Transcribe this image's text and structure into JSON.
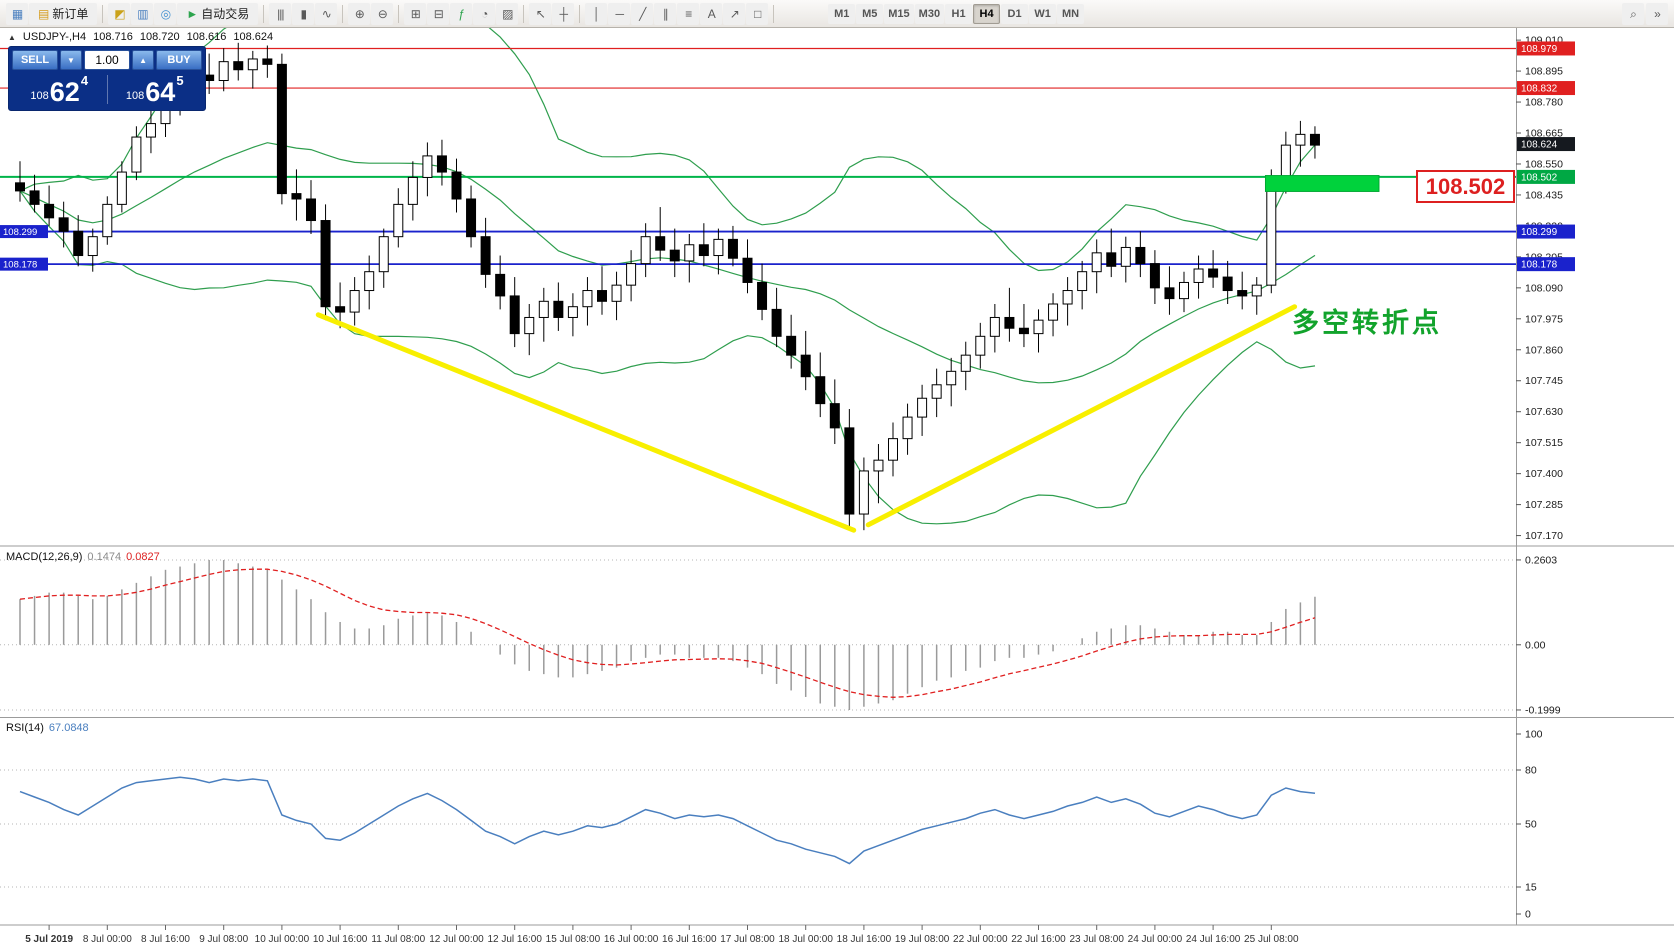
{
  "toolbar": {
    "items": [
      {
        "name": "chart-window-icon",
        "glyph": "▦",
        "color": "#4a7fbf"
      },
      {
        "name": "new-order-button",
        "glyph": "▤",
        "color": "#d49a1a",
        "label": "新订单"
      },
      {
        "type": "sep"
      },
      {
        "name": "market-watch-icon",
        "glyph": "◩",
        "color": "#caa21a"
      },
      {
        "name": "data-window-icon",
        "glyph": "▥",
        "color": "#4a7fbf"
      },
      {
        "name": "navigator-icon",
        "glyph": "◎",
        "color": "#3f8fd0"
      },
      {
        "name": "auto-trading-button",
        "glyph": "►",
        "color": "#2da44e",
        "label": "自动交易"
      },
      {
        "type": "sep"
      },
      {
        "name": "bar-chart-icon",
        "glyph": "|||"
      },
      {
        "name": "candlestick-chart-icon",
        "glyph": "▮"
      },
      {
        "name": "line-chart-icon",
        "glyph": "∿"
      },
      {
        "type": "sep"
      },
      {
        "name": "zoom-in-icon",
        "glyph": "⊕"
      },
      {
        "name": "zoom-out-icon",
        "glyph": "⊖"
      },
      {
        "type": "sep"
      },
      {
        "name": "tile-windows-icon",
        "glyph": "⊞"
      },
      {
        "name": "cascade-windows-icon",
        "glyph": "⊟"
      },
      {
        "name": "indicators-icon",
        "glyph": "ƒ",
        "color": "#2da44e"
      },
      {
        "name": "periods-icon",
        "glyph": "◔"
      },
      {
        "name": "templates-icon",
        "glyph": "▨"
      },
      {
        "type": "sep"
      },
      {
        "name": "cursor-icon",
        "glyph": "↖"
      },
      {
        "name": "crosshair-icon",
        "glyph": "┼"
      },
      {
        "type": "sep"
      },
      {
        "name": "vertical-line-icon",
        "glyph": "│"
      },
      {
        "name": "horizontal-line-icon",
        "glyph": "─"
      },
      {
        "name": "trendline-icon",
        "glyph": "╱"
      },
      {
        "name": "channel-icon",
        "glyph": "∥"
      },
      {
        "name": "fibonacci-icon",
        "glyph": "≡"
      },
      {
        "name": "text-icon",
        "glyph": "A"
      },
      {
        "name": "arrows-icon",
        "glyph": "↗"
      },
      {
        "name": "shapes-icon",
        "glyph": "□"
      },
      {
        "type": "sep"
      },
      {
        "type": "space"
      }
    ],
    "timeframes": [
      "M1",
      "M5",
      "M15",
      "M30",
      "H1",
      "H4",
      "D1",
      "W1",
      "MN"
    ],
    "active_timeframe": "H4",
    "right_items": [
      {
        "name": "search-icon",
        "glyph": "⌕"
      },
      {
        "name": "more-tools-icon",
        "glyph": "»"
      }
    ]
  },
  "trade_panel": {
    "sell_label": "SELL",
    "buy_label": "BUY",
    "volume": "1.00",
    "sell_price_prefix": "108",
    "sell_price_main": "62",
    "sell_price_sup": "4",
    "buy_price_prefix": "108",
    "buy_price_main": "64",
    "buy_price_sup": "5"
  },
  "symbol_info": {
    "collapse_glyph": "▲",
    "symbol_period": "USDJPY-,H4",
    "open": "108.716",
    "high": "108.720",
    "low": "108.616",
    "close": "108.624"
  },
  "indicators": {
    "macd_label": "MACD(12,26,9)",
    "macd_value": "0.1474",
    "macd_signal": "0.0827",
    "rsi_label": "RSI(14)",
    "rsi_value": "67.0848"
  },
  "annotations": {
    "turning_point_text": "多空转折点",
    "price_callout": "108.502"
  },
  "chart_data": {
    "type": "candlestick",
    "symbol": "USDJPY-",
    "timeframe": "H4",
    "price_axis": {
      "min": 107.17,
      "max": 109.01,
      "step": 0.115
    },
    "candle_colors": {
      "bull_fill": "#ffffff",
      "bear_fill": "#000000",
      "stroke": "#000000"
    },
    "bollinger": {
      "period": 20,
      "deviation": 2,
      "color": "#2f9e4e"
    },
    "candles": [
      [
        108.48,
        108.56,
        108.41,
        108.45
      ],
      [
        108.45,
        108.51,
        108.37,
        108.4
      ],
      [
        108.4,
        108.47,
        108.32,
        108.35
      ],
      [
        108.35,
        108.41,
        108.24,
        108.3
      ],
      [
        108.3,
        108.36,
        108.17,
        108.21
      ],
      [
        108.21,
        108.31,
        108.15,
        108.28
      ],
      [
        108.28,
        108.43,
        108.25,
        108.4
      ],
      [
        108.4,
        108.56,
        108.37,
        108.52
      ],
      [
        108.52,
        108.69,
        108.49,
        108.65
      ],
      [
        108.65,
        108.76,
        108.59,
        108.7
      ],
      [
        108.7,
        108.83,
        108.65,
        108.78
      ],
      [
        108.78,
        108.89,
        108.73,
        108.85
      ],
      [
        108.85,
        108.93,
        108.77,
        108.88
      ],
      [
        108.88,
        108.96,
        108.81,
        108.86
      ],
      [
        108.86,
        108.98,
        108.82,
        108.93
      ],
      [
        108.93,
        109.0,
        108.86,
        108.9
      ],
      [
        108.9,
        108.97,
        108.83,
        108.94
      ],
      [
        108.94,
        108.99,
        108.87,
        108.92
      ],
      [
        108.92,
        108.96,
        108.4,
        108.44
      ],
      [
        108.44,
        108.53,
        108.34,
        108.42
      ],
      [
        108.42,
        108.49,
        108.29,
        108.34
      ],
      [
        108.34,
        108.4,
        107.97,
        108.02
      ],
      [
        108.02,
        108.11,
        107.94,
        108.0
      ],
      [
        108.0,
        108.13,
        107.95,
        108.08
      ],
      [
        108.08,
        108.21,
        108.01,
        108.15
      ],
      [
        108.15,
        108.31,
        108.09,
        108.28
      ],
      [
        108.28,
        108.46,
        108.24,
        108.4
      ],
      [
        108.4,
        108.56,
        108.34,
        108.5
      ],
      [
        108.5,
        108.63,
        108.43,
        108.58
      ],
      [
        108.58,
        108.64,
        108.47,
        108.52
      ],
      [
        108.52,
        108.57,
        108.37,
        108.42
      ],
      [
        108.42,
        108.47,
        108.24,
        108.28
      ],
      [
        108.28,
        108.35,
        108.09,
        108.14
      ],
      [
        108.14,
        108.21,
        108.01,
        108.06
      ],
      [
        108.06,
        108.13,
        107.87,
        107.92
      ],
      [
        107.92,
        108.03,
        107.84,
        107.98
      ],
      [
        107.98,
        108.09,
        107.89,
        108.04
      ],
      [
        108.04,
        108.11,
        107.93,
        107.98
      ],
      [
        107.98,
        108.07,
        107.91,
        108.02
      ],
      [
        108.02,
        108.13,
        107.95,
        108.08
      ],
      [
        108.08,
        108.17,
        107.99,
        108.04
      ],
      [
        108.04,
        108.15,
        107.97,
        108.1
      ],
      [
        108.1,
        108.23,
        108.04,
        108.18
      ],
      [
        108.18,
        108.33,
        108.13,
        108.28
      ],
      [
        108.28,
        108.39,
        108.19,
        108.23
      ],
      [
        108.23,
        108.31,
        108.13,
        108.19
      ],
      [
        108.19,
        108.29,
        108.11,
        108.25
      ],
      [
        108.25,
        108.33,
        108.17,
        108.21
      ],
      [
        108.21,
        108.31,
        108.14,
        108.27
      ],
      [
        108.27,
        108.32,
        108.17,
        108.2
      ],
      [
        108.2,
        108.27,
        108.07,
        108.11
      ],
      [
        108.11,
        108.18,
        107.97,
        108.01
      ],
      [
        108.01,
        108.09,
        107.87,
        107.91
      ],
      [
        107.91,
        107.99,
        107.79,
        107.84
      ],
      [
        107.84,
        107.93,
        107.71,
        107.76
      ],
      [
        107.76,
        107.85,
        107.61,
        107.66
      ],
      [
        107.66,
        107.75,
        107.51,
        107.57
      ],
      [
        107.57,
        107.64,
        107.2,
        107.25
      ],
      [
        107.25,
        107.46,
        107.19,
        107.41
      ],
      [
        107.41,
        107.51,
        107.29,
        107.45
      ],
      [
        107.45,
        107.59,
        107.39,
        107.53
      ],
      [
        107.53,
        107.66,
        107.47,
        107.61
      ],
      [
        107.61,
        107.73,
        107.54,
        107.68
      ],
      [
        107.68,
        107.79,
        107.61,
        107.73
      ],
      [
        107.73,
        107.83,
        107.65,
        107.78
      ],
      [
        107.78,
        107.89,
        107.71,
        107.84
      ],
      [
        107.84,
        107.96,
        107.79,
        107.91
      ],
      [
        107.91,
        108.03,
        107.85,
        107.98
      ],
      [
        107.98,
        108.09,
        107.89,
        107.94
      ],
      [
        107.94,
        108.03,
        107.87,
        107.92
      ],
      [
        107.92,
        108.01,
        107.85,
        107.97
      ],
      [
        107.97,
        108.07,
        107.91,
        108.03
      ],
      [
        108.03,
        108.13,
        107.95,
        108.08
      ],
      [
        108.08,
        108.19,
        108.01,
        108.15
      ],
      [
        108.15,
        108.27,
        108.07,
        108.22
      ],
      [
        108.22,
        108.31,
        108.13,
        108.17
      ],
      [
        108.17,
        108.28,
        108.11,
        108.24
      ],
      [
        108.24,
        108.3,
        108.13,
        108.18
      ],
      [
        108.18,
        108.23,
        108.03,
        108.09
      ],
      [
        108.09,
        108.17,
        107.99,
        108.05
      ],
      [
        108.05,
        108.15,
        108.0,
        108.11
      ],
      [
        108.11,
        108.21,
        108.05,
        108.16
      ],
      [
        108.16,
        108.23,
        108.09,
        108.13
      ],
      [
        108.13,
        108.19,
        108.03,
        108.08
      ],
      [
        108.08,
        108.15,
        108.01,
        108.06
      ],
      [
        108.06,
        108.13,
        107.99,
        108.1
      ],
      [
        108.1,
        108.53,
        108.07,
        108.49
      ],
      [
        108.49,
        108.67,
        108.44,
        108.62
      ],
      [
        108.62,
        108.71,
        108.54,
        108.66
      ],
      [
        108.66,
        108.69,
        108.57,
        108.62
      ]
    ],
    "time_labels": [
      {
        "index": 2,
        "label": "5 Jul 2019",
        "bold": true
      },
      {
        "index": 6,
        "label": "8 Jul 00:00"
      },
      {
        "index": 10,
        "label": "8 Jul 16:00"
      },
      {
        "index": 14,
        "label": "9 Jul 08:00"
      },
      {
        "index": 18,
        "label": "10 Jul 00:00"
      },
      {
        "index": 22,
        "label": "10 Jul 16:00"
      },
      {
        "index": 26,
        "label": "11 Jul 08:00"
      },
      {
        "index": 30,
        "label": "12 Jul 00:00"
      },
      {
        "index": 34,
        "label": "12 Jul 16:00"
      },
      {
        "index": 38,
        "label": "15 Jul 08:00"
      },
      {
        "index": 42,
        "label": "16 Jul 00:00"
      },
      {
        "index": 46,
        "label": "16 Jul 16:00"
      },
      {
        "index": 50,
        "label": "17 Jul 08:00"
      },
      {
        "index": 54,
        "label": "18 Jul 00:00"
      },
      {
        "index": 58,
        "label": "18 Jul 16:00"
      },
      {
        "index": 62,
        "label": "19 Jul 08:00"
      },
      {
        "index": 66,
        "label": "22 Jul 00:00"
      },
      {
        "index": 70,
        "label": "22 Jul 16:00"
      },
      {
        "index": 74,
        "label": "23 Jul 08:00"
      },
      {
        "index": 78,
        "label": "24 Jul 00:00"
      },
      {
        "index": 82,
        "label": "24 Jul 16:00"
      },
      {
        "index": 86,
        "label": "25 Jul 08:00"
      }
    ],
    "h_lines": [
      {
        "price": 108.979,
        "color": "#e02020",
        "width": 1.2
      },
      {
        "price": 108.832,
        "color": "#e02020",
        "width": 1.2
      },
      {
        "price": 108.502,
        "color": "#00b44a",
        "width": 2
      },
      {
        "price": 108.299,
        "color": "#1a22cc",
        "width": 1.8
      },
      {
        "price": 108.178,
        "color": "#1a22cc",
        "width": 1.8
      }
    ],
    "price_tags": [
      {
        "price": 108.979,
        "label": "108.979",
        "color": "#e02020"
      },
      {
        "price": 108.832,
        "label": "108.832",
        "color": "#e02020"
      },
      {
        "price": 108.624,
        "label": "108.624",
        "color": "#15191f"
      },
      {
        "price": 108.502,
        "label": "108.502",
        "color": "#00a844"
      },
      {
        "price": 108.299,
        "label": "108.299",
        "color": "#1a22cc"
      },
      {
        "price": 108.178,
        "label": "108.178",
        "color": "#1a22cc"
      }
    ],
    "left_tags": [
      {
        "price": 108.299,
        "label": "108.299",
        "color": "#1a22cc"
      },
      {
        "price": 108.178,
        "label": "108.178",
        "color": "#1a22cc"
      }
    ],
    "green_zone": {
      "from_candle": 85.6,
      "to_candle": 93.4,
      "price_top": 108.507,
      "price_bottom": 108.448,
      "color": "#00d23c",
      "border": "#00a832"
    },
    "trend_lines": [
      {
        "name": "downtrend-line",
        "from_candle": 20.5,
        "from_price": 107.99,
        "to_candle": 57.3,
        "to_price": 107.19,
        "color": "#f8ef00",
        "width": 5
      },
      {
        "name": "uptrend-line",
        "from_candle": 58.3,
        "from_price": 107.21,
        "to_candle": 87.6,
        "to_price": 108.02,
        "color": "#f8ef00",
        "width": 5
      }
    ],
    "macd": {
      "histogram": [
        0.14,
        0.15,
        0.16,
        0.16,
        0.15,
        0.14,
        0.15,
        0.17,
        0.19,
        0.21,
        0.23,
        0.24,
        0.25,
        0.26,
        0.26,
        0.25,
        0.24,
        0.23,
        0.2,
        0.17,
        0.14,
        0.1,
        0.07,
        0.05,
        0.05,
        0.06,
        0.08,
        0.09,
        0.1,
        0.09,
        0.07,
        0.04,
        0.0,
        -0.03,
        -0.06,
        -0.08,
        -0.09,
        -0.1,
        -0.1,
        -0.09,
        -0.08,
        -0.07,
        -0.05,
        -0.04,
        -0.03,
        -0.03,
        -0.04,
        -0.04,
        -0.04,
        -0.05,
        -0.07,
        -0.09,
        -0.12,
        -0.14,
        -0.16,
        -0.18,
        -0.19,
        -0.2,
        -0.19,
        -0.18,
        -0.17,
        -0.15,
        -0.13,
        -0.11,
        -0.1,
        -0.08,
        -0.07,
        -0.05,
        -0.04,
        -0.04,
        -0.03,
        -0.02,
        0.0,
        0.02,
        0.04,
        0.05,
        0.06,
        0.06,
        0.05,
        0.04,
        0.03,
        0.03,
        0.04,
        0.04,
        0.03,
        0.03,
        0.07,
        0.11,
        0.13,
        0.1474
      ],
      "signal": [
        0.14,
        0.145,
        0.15,
        0.152,
        0.152,
        0.15,
        0.15,
        0.154,
        0.161,
        0.171,
        0.183,
        0.194,
        0.205,
        0.216,
        0.225,
        0.23,
        0.232,
        0.232,
        0.225,
        0.214,
        0.199,
        0.18,
        0.158,
        0.136,
        0.119,
        0.107,
        0.102,
        0.099,
        0.099,
        0.097,
        0.092,
        0.081,
        0.065,
        0.046,
        0.025,
        0.004,
        -0.015,
        -0.032,
        -0.046,
        -0.055,
        -0.06,
        -0.062,
        -0.059,
        -0.055,
        -0.05,
        -0.046,
        -0.045,
        -0.044,
        -0.043,
        -0.044,
        -0.049,
        -0.057,
        -0.07,
        -0.084,
        -0.099,
        -0.115,
        -0.13,
        -0.144,
        -0.153,
        -0.158,
        -0.161,
        -0.159,
        -0.153,
        -0.144,
        -0.136,
        -0.125,
        -0.114,
        -0.101,
        -0.089,
        -0.079,
        -0.069,
        -0.059,
        -0.047,
        -0.034,
        -0.019,
        -0.005,
        0.008,
        0.018,
        0.024,
        0.027,
        0.028,
        0.028,
        0.03,
        0.032,
        0.032,
        0.032,
        0.04,
        0.054,
        0.069,
        0.0827
      ],
      "axis": [
        {
          "value": 0.2603,
          "label": "0.2603"
        },
        {
          "value": 0,
          "label": "0.00"
        },
        {
          "value": -0.1999,
          "label": "-0.1999"
        }
      ],
      "histogram_color": "#9a9a9a",
      "signal_color": "#e02020"
    },
    "rsi": {
      "values": [
        68,
        65,
        62,
        58,
        55,
        60,
        65,
        70,
        73,
        74,
        75,
        76,
        75,
        73,
        75,
        74,
        75,
        74,
        55,
        52,
        50,
        42,
        41,
        45,
        50,
        55,
        60,
        64,
        67,
        63,
        58,
        52,
        46,
        43,
        39,
        43,
        46,
        44,
        46,
        49,
        48,
        50,
        54,
        58,
        56,
        53,
        55,
        54,
        55,
        53,
        49,
        45,
        41,
        39,
        36,
        34,
        32,
        28,
        35,
        38,
        41,
        44,
        47,
        49,
        51,
        53,
        56,
        58,
        55,
        53,
        55,
        57,
        60,
        62,
        65,
        62,
        64,
        61,
        56,
        54,
        57,
        60,
        58,
        55,
        53,
        55,
        66,
        70,
        68,
        67.08
      ],
      "levels": [
        80,
        50,
        15
      ],
      "axis_labels": [
        {
          "value": 100,
          "label": "100"
        },
        {
          "value": 80,
          "label": "80"
        },
        {
          "value": 50,
          "label": "50"
        },
        {
          "value": 15,
          "label": "15"
        },
        {
          "value": 0,
          "label": "0"
        }
      ],
      "line_color": "#4a7fbf"
    }
  }
}
